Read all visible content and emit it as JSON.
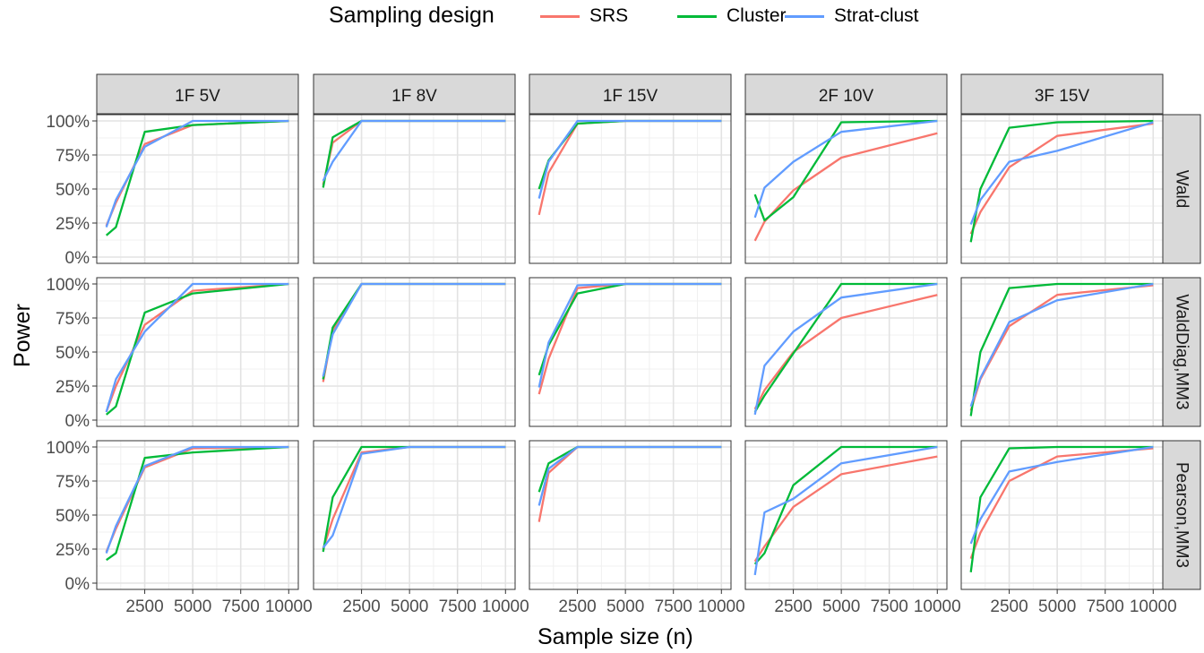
{
  "legend": {
    "title": "Sampling design",
    "items": [
      {
        "label": "SRS",
        "color": "#F8766D"
      },
      {
        "label": "Cluster",
        "color": "#00BA38"
      },
      {
        "label": "Strat-clust",
        "color": "#619CFF"
      }
    ]
  },
  "axes": {
    "xlabel": "Sample size (n)",
    "ylabel": "Power"
  },
  "chart_data": {
    "type": "line",
    "facet_columns": [
      "1F 5V",
      "1F 8V",
      "1F 15V",
      "2F 10V",
      "3F 15V"
    ],
    "facet_rows": [
      "Wald",
      "WaldDiag,MM3",
      "Pearson,MM3"
    ],
    "x": [
      500,
      1000,
      2500,
      5000,
      10000
    ],
    "x_ticks": [
      2500,
      5000,
      7500,
      10000
    ],
    "x_tick_labels": [
      "2500",
      "5000",
      "7500",
      "10000"
    ],
    "xlim": [
      0,
      10500
    ],
    "y_ticks": [
      0,
      25,
      50,
      75,
      100
    ],
    "y_tick_labels": [
      "0%",
      "25%",
      "50%",
      "75%",
      "100%"
    ],
    "ylim": [
      0,
      100
    ],
    "grid": true,
    "legend_position": "top",
    "series_names": [
      "SRS",
      "Cluster",
      "Strat-clust"
    ],
    "panels": [
      [
        {
          "SRS": [
            23,
            40,
            83,
            97,
            100
          ],
          "Cluster": [
            16,
            22,
            92,
            97,
            100
          ],
          "Strat-clust": [
            22,
            42,
            81,
            100,
            100
          ]
        },
        {
          "SRS": [
            53,
            84,
            100,
            100,
            100
          ],
          "Cluster": [
            51,
            88,
            100,
            100,
            100
          ],
          "Strat-clust": [
            56,
            70,
            100,
            100,
            100
          ]
        },
        {
          "SRS": [
            31,
            62,
            98,
            100,
            100
          ],
          "Cluster": [
            50,
            71,
            98,
            100,
            100
          ],
          "Strat-clust": [
            43,
            70,
            100,
            100,
            100
          ]
        },
        {
          "SRS": [
            12,
            26,
            49,
            73,
            91
          ],
          "Cluster": [
            46,
            27,
            44,
            99,
            100
          ],
          "Strat-clust": [
            29,
            51,
            70,
            92,
            100
          ]
        },
        {
          "SRS": [
            17,
            33,
            66,
            89,
            98
          ],
          "Cluster": [
            11,
            50,
            95,
            99,
            100
          ],
          "Strat-clust": [
            24,
            42,
            70,
            78,
            99
          ]
        }
      ],
      [
        {
          "SRS": [
            6,
            25,
            70,
            95,
            100
          ],
          "Cluster": [
            4,
            10,
            79,
            93,
            100
          ],
          "Strat-clust": [
            6,
            30,
            65,
            100,
            100
          ]
        },
        {
          "SRS": [
            28,
            66,
            100,
            100,
            100
          ],
          "Cluster": [
            30,
            68,
            100,
            100,
            100
          ],
          "Strat-clust": [
            32,
            63,
            100,
            100,
            100
          ]
        },
        {
          "SRS": [
            19,
            45,
            97,
            100,
            100
          ],
          "Cluster": [
            33,
            55,
            93,
            100,
            100
          ],
          "Strat-clust": [
            24,
            57,
            99,
            100,
            100
          ]
        },
        {
          "SRS": [
            8,
            22,
            50,
            75,
            92
          ],
          "Cluster": [
            6,
            18,
            49,
            100,
            100
          ],
          "Strat-clust": [
            4,
            40,
            65,
            90,
            100
          ]
        },
        {
          "SRS": [
            7,
            30,
            69,
            92,
            99
          ],
          "Cluster": [
            3,
            50,
            97,
            100,
            100
          ],
          "Strat-clust": [
            10,
            31,
            72,
            88,
            100
          ]
        }
      ],
      [
        {
          "SRS": [
            23,
            40,
            85,
            99,
            100
          ],
          "Cluster": [
            17,
            22,
            92,
            96,
            100
          ],
          "Strat-clust": [
            22,
            42,
            86,
            100,
            100
          ]
        },
        {
          "SRS": [
            25,
            47,
            96,
            100,
            100
          ],
          "Cluster": [
            23,
            63,
            100,
            100,
            100
          ],
          "Strat-clust": [
            26,
            35,
            95,
            100,
            100
          ]
        },
        {
          "SRS": [
            45,
            81,
            100,
            100,
            100
          ],
          "Cluster": [
            67,
            88,
            100,
            100,
            100
          ],
          "Strat-clust": [
            57,
            84,
            100,
            100,
            100
          ]
        },
        {
          "SRS": [
            16,
            27,
            56,
            80,
            93
          ],
          "Cluster": [
            14,
            22,
            72,
            100,
            100
          ],
          "Strat-clust": [
            6,
            52,
            62,
            88,
            100
          ]
        },
        {
          "SRS": [
            18,
            37,
            75,
            93,
            99
          ],
          "Cluster": [
            8,
            63,
            99,
            100,
            100
          ],
          "Strat-clust": [
            29,
            47,
            82,
            89,
            100
          ]
        }
      ]
    ]
  }
}
